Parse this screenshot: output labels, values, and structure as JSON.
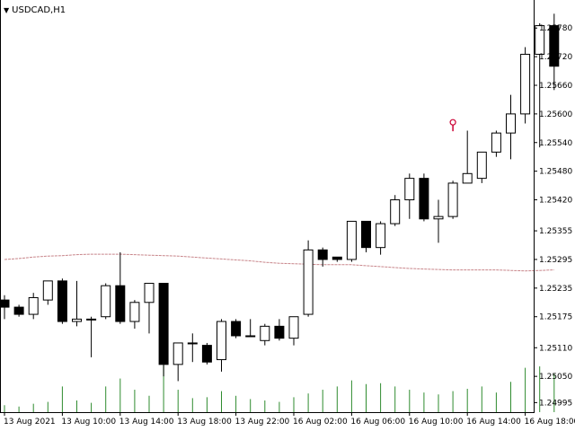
{
  "window": {
    "symbol_label": "USDCAD,H1",
    "dropdown_icon": "triangle-down-icon"
  },
  "colors": {
    "background": "#ffffff",
    "candle_up_fill": "#ffffff",
    "candle_down_fill": "#000000",
    "candle_stroke": "#000000",
    "volume": "#2e8b2e",
    "moving_average": "#c8858a",
    "arrow_marker": "#cc0033"
  },
  "chart_data": {
    "type": "candlestick",
    "ylim": [
      1.24975,
      1.25835
    ],
    "yticks": [
      "1.25780",
      "1.25720",
      "1.25660",
      "1.25600",
      "1.25540",
      "1.25480",
      "1.25420",
      "1.25355",
      "1.25295",
      "1.25235",
      "1.25175",
      "1.25110",
      "1.25050",
      "1.24995"
    ],
    "xlabels": [
      {
        "i": 0,
        "text": "13 Aug 2021"
      },
      {
        "i": 4,
        "text": "13 Aug 10:00"
      },
      {
        "i": 8,
        "text": "13 Aug 14:00"
      },
      {
        "i": 12,
        "text": "13 Aug 18:00"
      },
      {
        "i": 16,
        "text": "13 Aug 22:00"
      },
      {
        "i": 20,
        "text": "16 Aug 02:00"
      },
      {
        "i": 24,
        "text": "16 Aug 06:00"
      },
      {
        "i": 28,
        "text": "16 Aug 10:00"
      },
      {
        "i": 32,
        "text": "16 Aug 14:00"
      },
      {
        "i": 36,
        "text": "16 Aug 18:00"
      }
    ],
    "candles": [
      {
        "o": 1.2521,
        "h": 1.2522,
        "l": 1.2517,
        "c": 1.25195
      },
      {
        "o": 1.25195,
        "h": 1.252,
        "l": 1.25175,
        "c": 1.2518
      },
      {
        "o": 1.2518,
        "h": 1.25225,
        "l": 1.2517,
        "c": 1.25215
      },
      {
        "o": 1.2521,
        "h": 1.2525,
        "l": 1.252,
        "c": 1.2525
      },
      {
        "o": 1.2525,
        "h": 1.25255,
        "l": 1.2516,
        "c": 1.25165
      },
      {
        "o": 1.25165,
        "h": 1.2525,
        "l": 1.25155,
        "c": 1.2517
      },
      {
        "o": 1.2517,
        "h": 1.25175,
        "l": 1.2509,
        "c": 1.2517
      },
      {
        "o": 1.25175,
        "h": 1.25245,
        "l": 1.2517,
        "c": 1.2524
      },
      {
        "o": 1.2524,
        "h": 1.2531,
        "l": 1.2516,
        "c": 1.25165
      },
      {
        "o": 1.25165,
        "h": 1.2521,
        "l": 1.2515,
        "c": 1.25205
      },
      {
        "o": 1.25205,
        "h": 1.25245,
        "l": 1.2514,
        "c": 1.25245
      },
      {
        "o": 1.25245,
        "h": 1.25245,
        "l": 1.2505,
        "c": 1.25075
      },
      {
        "o": 1.25075,
        "h": 1.2512,
        "l": 1.2504,
        "c": 1.2512
      },
      {
        "o": 1.2512,
        "h": 1.2514,
        "l": 1.2508,
        "c": 1.2512
      },
      {
        "o": 1.25115,
        "h": 1.2512,
        "l": 1.25075,
        "c": 1.2508
      },
      {
        "o": 1.25085,
        "h": 1.2517,
        "l": 1.2506,
        "c": 1.25165
      },
      {
        "o": 1.25165,
        "h": 1.2517,
        "l": 1.2513,
        "c": 1.25135
      },
      {
        "o": 1.25135,
        "h": 1.2517,
        "l": 1.25135,
        "c": 1.25135
      },
      {
        "o": 1.25125,
        "h": 1.2516,
        "l": 1.25115,
        "c": 1.25155
      },
      {
        "o": 1.25155,
        "h": 1.2517,
        "l": 1.25125,
        "c": 1.2513
      },
      {
        "o": 1.2513,
        "h": 1.25175,
        "l": 1.25115,
        "c": 1.25175
      },
      {
        "o": 1.2518,
        "h": 1.25335,
        "l": 1.25175,
        "c": 1.25315
      },
      {
        "o": 1.25315,
        "h": 1.2532,
        "l": 1.2528,
        "c": 1.25295
      },
      {
        "o": 1.253,
        "h": 1.253,
        "l": 1.2529,
        "c": 1.25295
      },
      {
        "o": 1.25295,
        "h": 1.25375,
        "l": 1.2529,
        "c": 1.25375
      },
      {
        "o": 1.25375,
        "h": 1.25375,
        "l": 1.2531,
        "c": 1.2532
      },
      {
        "o": 1.2532,
        "h": 1.25375,
        "l": 1.25305,
        "c": 1.2537
      },
      {
        "o": 1.2537,
        "h": 1.2543,
        "l": 1.25365,
        "c": 1.2542
      },
      {
        "o": 1.2542,
        "h": 1.25475,
        "l": 1.2538,
        "c": 1.25465
      },
      {
        "o": 1.25465,
        "h": 1.25475,
        "l": 1.25375,
        "c": 1.2538
      },
      {
        "o": 1.2538,
        "h": 1.2542,
        "l": 1.2533,
        "c": 1.25385
      },
      {
        "o": 1.25385,
        "h": 1.2546,
        "l": 1.2538,
        "c": 1.25455
      },
      {
        "o": 1.25455,
        "h": 1.25565,
        "l": 1.2546,
        "c": 1.25475
      },
      {
        "o": 1.25465,
        "h": 1.2552,
        "l": 1.25455,
        "c": 1.2552
      },
      {
        "o": 1.2552,
        "h": 1.25565,
        "l": 1.2551,
        "c": 1.2556
      },
      {
        "o": 1.2556,
        "h": 1.2564,
        "l": 1.25505,
        "c": 1.256
      },
      {
        "o": 1.256,
        "h": 1.2574,
        "l": 1.2558,
        "c": 1.25725
      },
      {
        "o": 1.25725,
        "h": 1.2579,
        "l": 1.2553,
        "c": 1.25785
      },
      {
        "o": 1.25785,
        "h": 1.2581,
        "l": 1.2565,
        "c": 1.257
      }
    ],
    "volumes": [
      0.15,
      0.12,
      0.18,
      0.22,
      0.55,
      0.25,
      0.2,
      0.55,
      0.72,
      0.48,
      0.35,
      1.0,
      0.48,
      0.3,
      0.32,
      0.45,
      0.35,
      0.28,
      0.25,
      0.22,
      0.32,
      0.4,
      0.48,
      0.55,
      0.68,
      0.6,
      0.62,
      0.55,
      0.48,
      0.42,
      0.38,
      0.45,
      0.5,
      0.55,
      0.42,
      0.65,
      0.95,
      0.98,
      0.82
    ],
    "moving_average": [
      1.25295,
      1.25297,
      1.253,
      1.25302,
      1.25303,
      1.25305,
      1.25306,
      1.25306,
      1.25306,
      1.25305,
      1.25304,
      1.25303,
      1.25302,
      1.253,
      1.25298,
      1.25296,
      1.25294,
      1.25292,
      1.25289,
      1.25287,
      1.25286,
      1.25285,
      1.25284,
      1.25284,
      1.25284,
      1.25282,
      1.2528,
      1.25278,
      1.25276,
      1.25275,
      1.25274,
      1.25273,
      1.25273,
      1.25273,
      1.25273,
      1.25272,
      1.25271,
      1.25272,
      1.25273
    ],
    "signal_marker": {
      "i": 31,
      "price": 1.25575
    }
  }
}
